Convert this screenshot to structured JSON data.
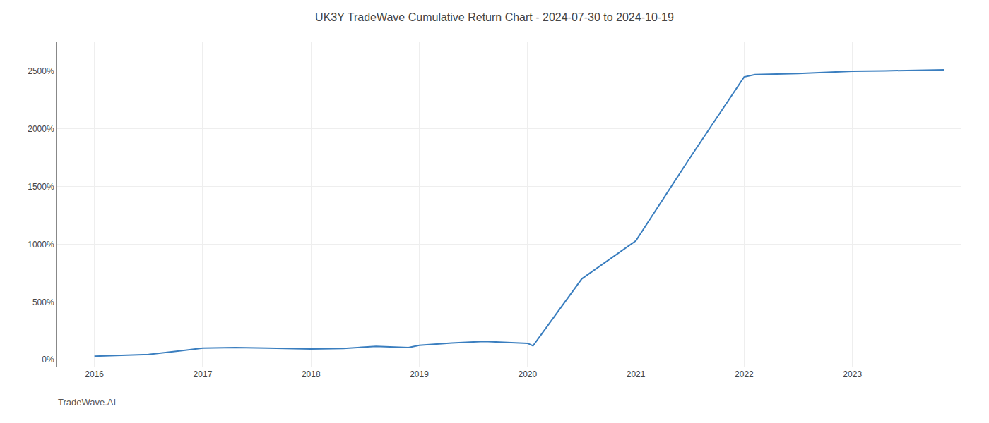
{
  "chart_data": {
    "type": "line",
    "title": "UK3Y TradeWave Cumulative Return Chart - 2024-07-30 to 2024-10-19",
    "annotations": [
      "TradeWave.AI"
    ],
    "color": "#3a7ebf",
    "x": [
      2016.0,
      2016.5,
      2017.0,
      2017.3,
      2017.6,
      2018.0,
      2018.3,
      2018.6,
      2018.9,
      2019.0,
      2019.3,
      2019.6,
      2019.85,
      2020.0,
      2020.05,
      2020.5,
      2021.0,
      2021.5,
      2022.0,
      2022.1,
      2022.5,
      2022.75,
      2023.0,
      2023.3,
      2023.7,
      2023.85
    ],
    "values": [
      30,
      45,
      100,
      105,
      100,
      92,
      98,
      115,
      105,
      125,
      145,
      158,
      148,
      142,
      120,
      700,
      1030,
      1750,
      2450,
      2470,
      2480,
      2490,
      2500,
      2503,
      2510,
      2512
    ],
    "xlim": [
      2015.65,
      2024.0
    ],
    "xticks": [
      2016,
      2017,
      2018,
      2019,
      2020,
      2021,
      2022,
      2023
    ],
    "ylim": [
      -60,
      2750
    ],
    "yticks": [
      {
        "value": 0,
        "label": "0%"
      },
      {
        "value": 500,
        "label": "500%"
      },
      {
        "value": 1000,
        "label": "1000%"
      },
      {
        "value": 1500,
        "label": "1500%"
      },
      {
        "value": 2000,
        "label": "2000%"
      },
      {
        "value": 2500,
        "label": "2500%"
      }
    ],
    "grid": true
  }
}
